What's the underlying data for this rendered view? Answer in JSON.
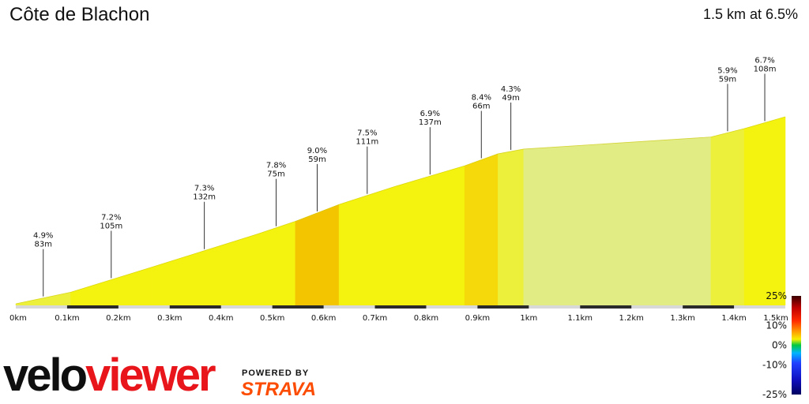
{
  "header": {
    "title": "Côte de Blachon",
    "summary": "1.5 km at 6.5%"
  },
  "branding": {
    "logo_part1": "velo",
    "logo_part2": "viewer",
    "powered_by": "POWERED BY",
    "strava": "STRAVA"
  },
  "chart_data": {
    "type": "area",
    "title": "Côte de Blachon",
    "x_unit": "km",
    "x_range": [
      0,
      1.5
    ],
    "x_tick_labels": [
      "0km",
      "0.1km",
      "0.2km",
      "0.3km",
      "0.4km",
      "0.5km",
      "0.6km",
      "0.7km",
      "0.8km",
      "0.9km",
      "1km",
      "1.1km",
      "1.2km",
      "1.3km",
      "1.4km",
      "1.5km"
    ],
    "segments": [
      {
        "x0": 0.0,
        "x1": 0.107,
        "grade": 4.9,
        "label_grade": "4.9%",
        "label_elev": "83m",
        "labeled": true
      },
      {
        "x0": 0.107,
        "x1": 0.265,
        "grade": 7.2,
        "label_grade": "7.2%",
        "label_elev": "105m",
        "labeled": true
      },
      {
        "x0": 0.265,
        "x1": 0.47,
        "grade": 7.3,
        "label_grade": "7.3%",
        "label_elev": "132m",
        "labeled": true
      },
      {
        "x0": 0.47,
        "x1": 0.545,
        "grade": 7.8,
        "label_grade": "7.8%",
        "label_elev": "75m",
        "labeled": true
      },
      {
        "x0": 0.545,
        "x1": 0.63,
        "grade": 9.0,
        "label_grade": "9.0%",
        "label_elev": "59m",
        "labeled": true
      },
      {
        "x0": 0.63,
        "x1": 0.74,
        "grade": 7.5,
        "label_grade": "7.5%",
        "label_elev": "111m",
        "labeled": true
      },
      {
        "x0": 0.74,
        "x1": 0.875,
        "grade": 6.9,
        "label_grade": "6.9%",
        "label_elev": "137m",
        "labeled": true
      },
      {
        "x0": 0.875,
        "x1": 0.94,
        "grade": 8.4,
        "label_grade": "8.4%",
        "label_elev": "66m",
        "labeled": true
      },
      {
        "x0": 0.94,
        "x1": 0.99,
        "grade": 4.3,
        "label_grade": "4.3%",
        "label_elev": "49m",
        "labeled": true
      },
      {
        "x0": 0.99,
        "x1": 1.355,
        "grade": 1.5,
        "labeled": false
      },
      {
        "x0": 1.355,
        "x1": 1.42,
        "grade": 5.9,
        "label_grade": "5.9%",
        "label_elev": "59m",
        "labeled": true
      },
      {
        "x0": 1.42,
        "x1": 1.5,
        "grade": 6.7,
        "label_grade": "6.7%",
        "label_elev": "108m",
        "labeled": true
      }
    ],
    "grade_scale": {
      "labels": [
        "25%",
        "10%",
        "0%",
        "-10%",
        "-25%"
      ],
      "values": [
        25,
        10,
        0,
        -10,
        -25
      ]
    },
    "colors": {
      "grade_lt2": "#e1ec85",
      "grade_4_6": "#ecf03a",
      "grade_6_8": "#f4f20f",
      "grade_8_9": "#f5d90a",
      "grade_9p": "#f2c500"
    }
  }
}
